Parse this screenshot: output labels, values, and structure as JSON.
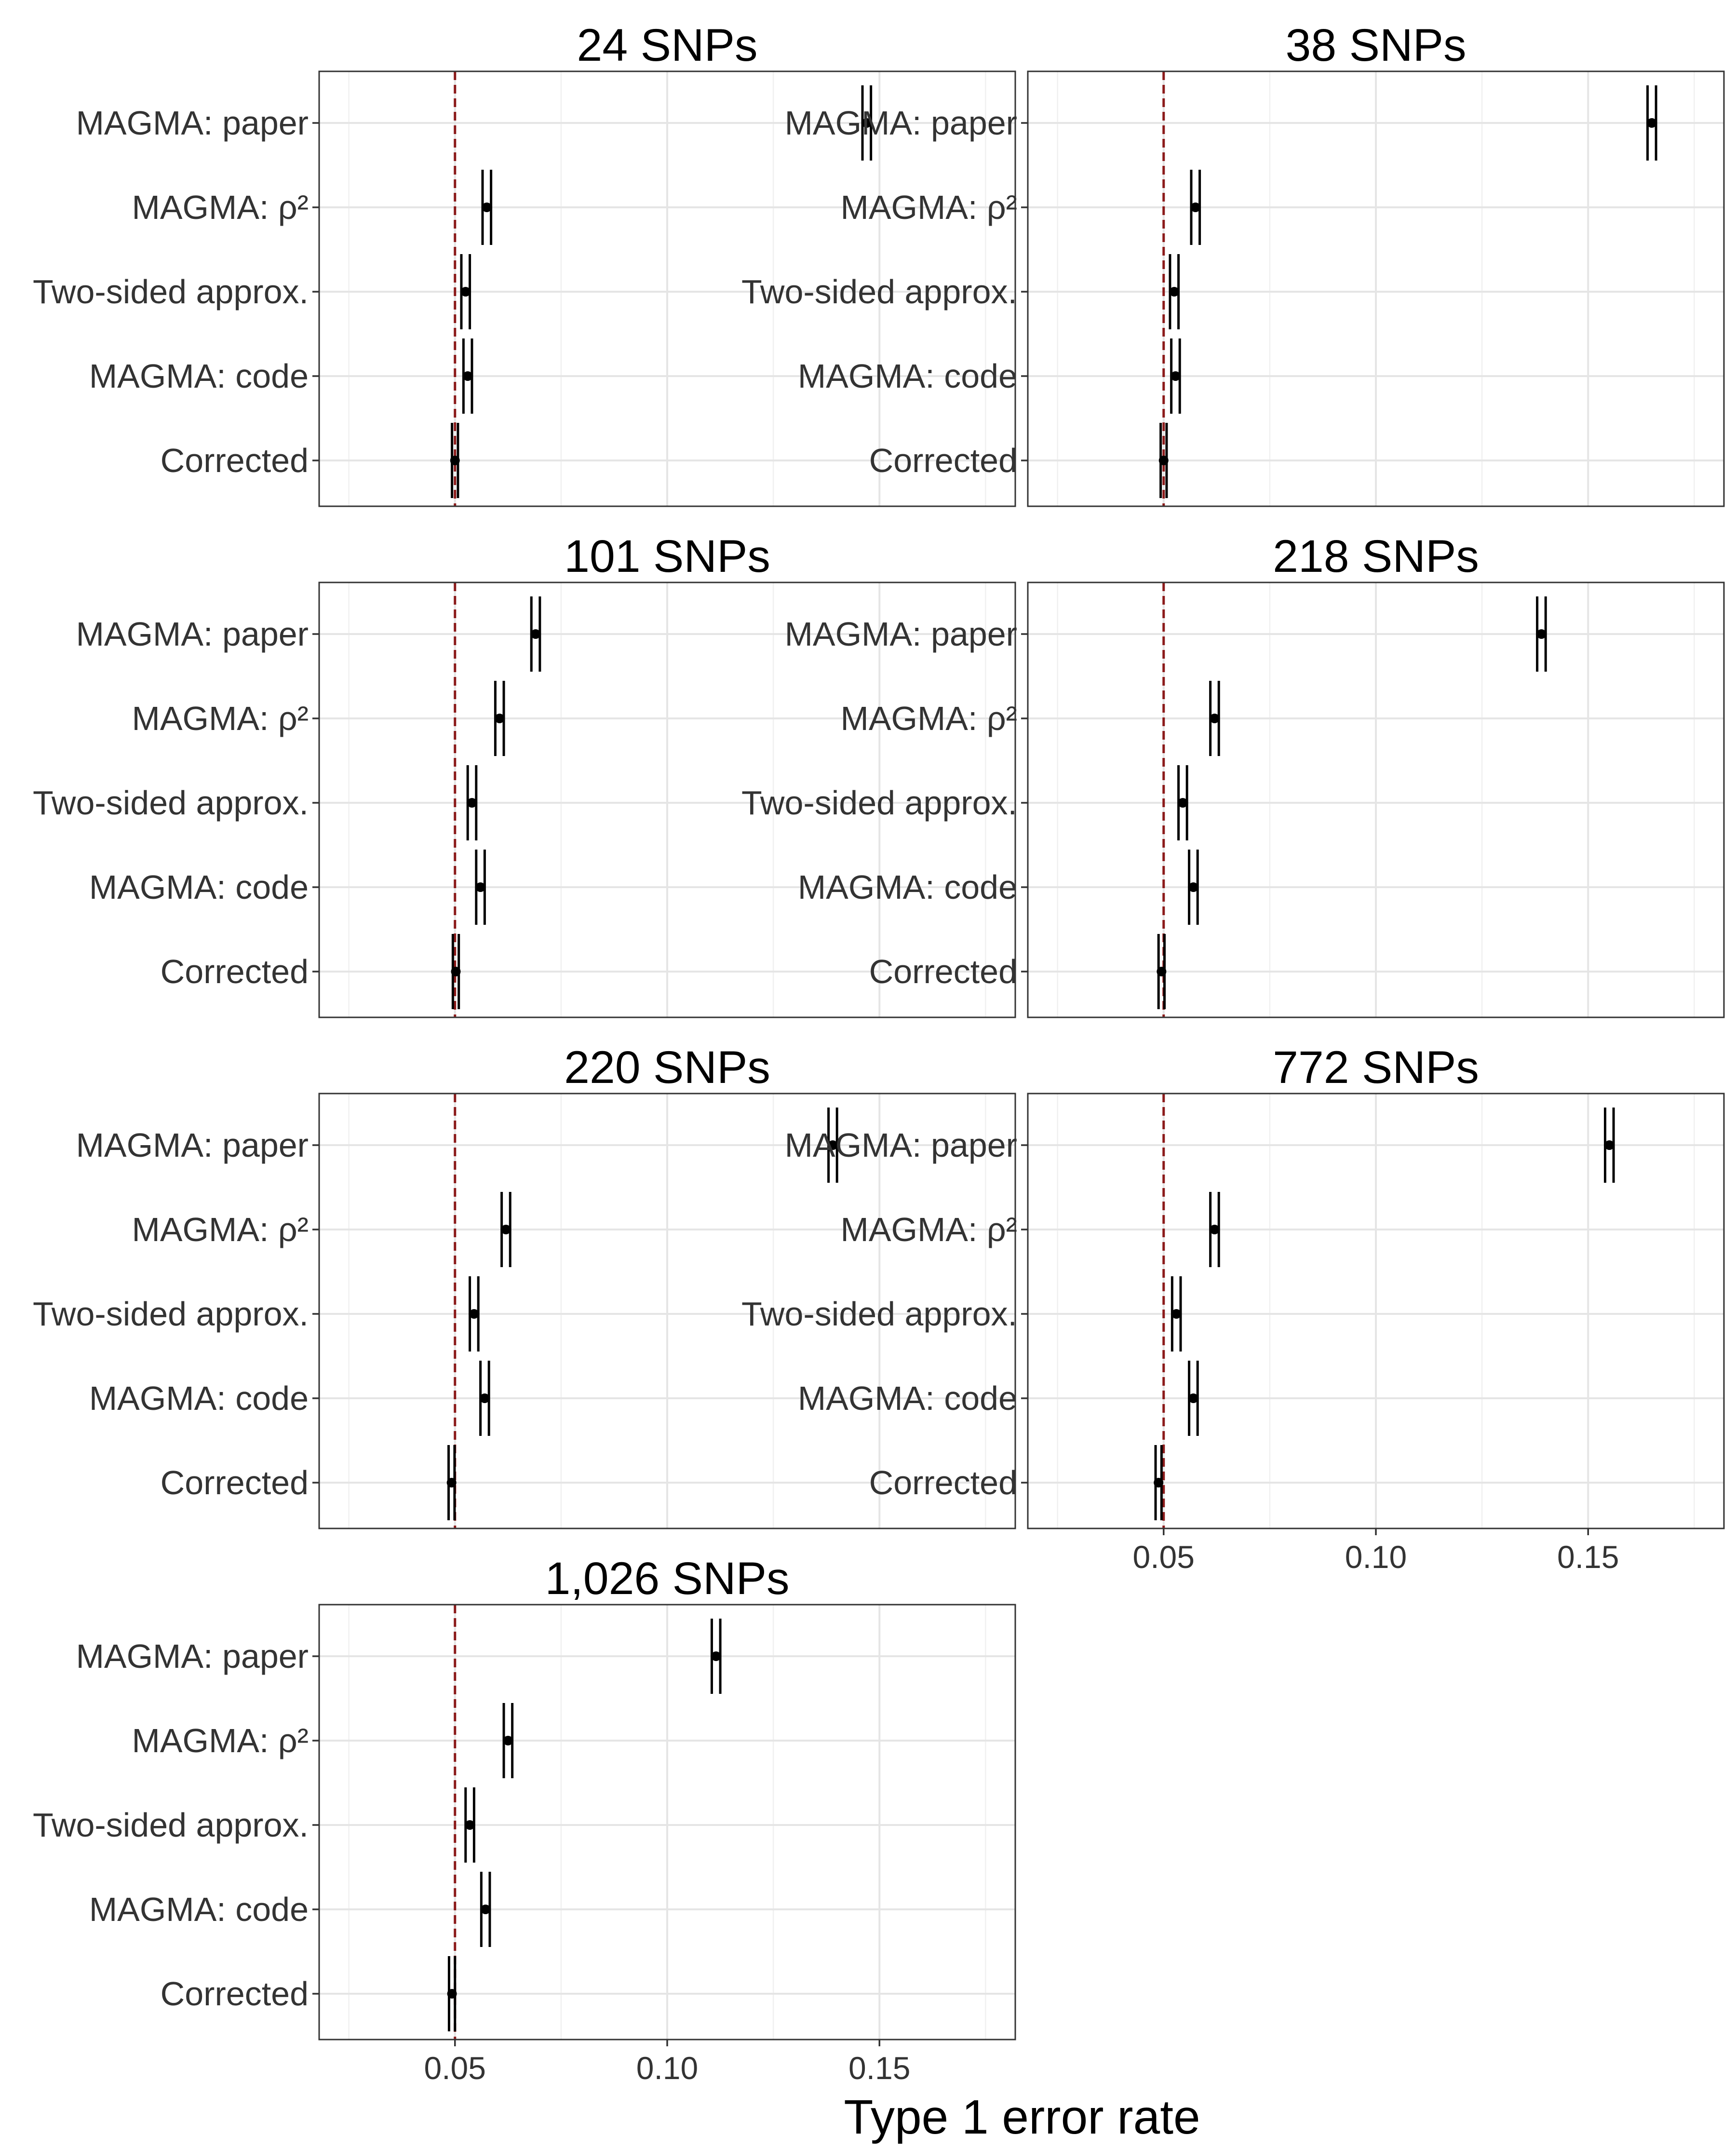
{
  "chart_data": {
    "type": "scatter",
    "subtype": "facetted point-range (dot with confidence interval)",
    "xlabel": "Type 1 error rate",
    "xlim": [
      0.018,
      0.182
    ],
    "x_major_ticks": [
      0.05,
      0.1,
      0.15
    ],
    "x_tick_labels": [
      "0.05",
      "0.10",
      "0.15"
    ],
    "x_minor_ticks": [
      0.025,
      0.075,
      0.125,
      0.175
    ],
    "reference_line": {
      "x": 0.05,
      "style": "dashed",
      "color": "#8b1a1a"
    },
    "categories": [
      "MAGMA: paper",
      "MAGMA: ρ²",
      "Two-sided approx.",
      "MAGMA: code",
      "Corrected"
    ],
    "grid": true,
    "panels": [
      {
        "title": "24 SNPs",
        "points": [
          {
            "category": "MAGMA: paper",
            "value": 0.147,
            "lo": 0.146,
            "hi": 0.148
          },
          {
            "category": "MAGMA: ρ²",
            "value": 0.0575,
            "lo": 0.0565,
            "hi": 0.0585
          },
          {
            "category": "Two-sided approx.",
            "value": 0.0525,
            "lo": 0.0515,
            "hi": 0.0535
          },
          {
            "category": "MAGMA: code",
            "value": 0.053,
            "lo": 0.052,
            "hi": 0.054
          },
          {
            "category": "Corrected",
            "value": 0.05,
            "lo": 0.0493,
            "hi": 0.0507
          }
        ]
      },
      {
        "title": "38 SNPs",
        "points": [
          {
            "category": "MAGMA: paper",
            "value": 0.165,
            "lo": 0.164,
            "hi": 0.166
          },
          {
            "category": "MAGMA: ρ²",
            "value": 0.0575,
            "lo": 0.0565,
            "hi": 0.0585
          },
          {
            "category": "Two-sided approx.",
            "value": 0.0525,
            "lo": 0.0515,
            "hi": 0.0535
          },
          {
            "category": "MAGMA: code",
            "value": 0.0528,
            "lo": 0.0518,
            "hi": 0.0538
          },
          {
            "category": "Corrected",
            "value": 0.05,
            "lo": 0.0493,
            "hi": 0.0507
          }
        ]
      },
      {
        "title": "101 SNPs",
        "points": [
          {
            "category": "MAGMA: paper",
            "value": 0.069,
            "lo": 0.068,
            "hi": 0.07
          },
          {
            "category": "MAGMA: ρ²",
            "value": 0.0605,
            "lo": 0.0595,
            "hi": 0.0615
          },
          {
            "category": "Two-sided approx.",
            "value": 0.054,
            "lo": 0.053,
            "hi": 0.055
          },
          {
            "category": "MAGMA: code",
            "value": 0.056,
            "lo": 0.055,
            "hi": 0.057
          },
          {
            "category": "Corrected",
            "value": 0.0502,
            "lo": 0.0495,
            "hi": 0.0509
          }
        ]
      },
      {
        "title": "218 SNPs",
        "points": [
          {
            "category": "MAGMA: paper",
            "value": 0.139,
            "lo": 0.138,
            "hi": 0.14
          },
          {
            "category": "MAGMA: ρ²",
            "value": 0.062,
            "lo": 0.061,
            "hi": 0.063
          },
          {
            "category": "Two-sided approx.",
            "value": 0.0545,
            "lo": 0.0535,
            "hi": 0.0555
          },
          {
            "category": "MAGMA: code",
            "value": 0.057,
            "lo": 0.056,
            "hi": 0.058
          },
          {
            "category": "Corrected",
            "value": 0.0495,
            "lo": 0.0488,
            "hi": 0.0502
          }
        ]
      },
      {
        "title": "220 SNPs",
        "points": [
          {
            "category": "MAGMA: paper",
            "value": 0.139,
            "lo": 0.138,
            "hi": 0.14
          },
          {
            "category": "MAGMA: ρ²",
            "value": 0.062,
            "lo": 0.061,
            "hi": 0.063
          },
          {
            "category": "Two-sided approx.",
            "value": 0.0545,
            "lo": 0.0535,
            "hi": 0.0555
          },
          {
            "category": "MAGMA: code",
            "value": 0.057,
            "lo": 0.056,
            "hi": 0.058
          },
          {
            "category": "Corrected",
            "value": 0.0492,
            "lo": 0.0485,
            "hi": 0.0499
          }
        ]
      },
      {
        "title": "772 SNPs",
        "points": [
          {
            "category": "MAGMA: paper",
            "value": 0.155,
            "lo": 0.154,
            "hi": 0.156
          },
          {
            "category": "MAGMA: ρ²",
            "value": 0.062,
            "lo": 0.061,
            "hi": 0.063
          },
          {
            "category": "Two-sided approx.",
            "value": 0.053,
            "lo": 0.052,
            "hi": 0.054
          },
          {
            "category": "MAGMA: code",
            "value": 0.057,
            "lo": 0.056,
            "hi": 0.058
          },
          {
            "category": "Corrected",
            "value": 0.0488,
            "lo": 0.0481,
            "hi": 0.0495
          }
        ]
      },
      {
        "title": "1,026 SNPs",
        "points": [
          {
            "category": "MAGMA: paper",
            "value": 0.1115,
            "lo": 0.1105,
            "hi": 0.1125
          },
          {
            "category": "MAGMA: ρ²",
            "value": 0.0625,
            "lo": 0.0615,
            "hi": 0.0635
          },
          {
            "category": "Two-sided approx.",
            "value": 0.0535,
            "lo": 0.0525,
            "hi": 0.0545
          },
          {
            "category": "MAGMA: code",
            "value": 0.0572,
            "lo": 0.0562,
            "hi": 0.0582
          },
          {
            "category": "Corrected",
            "value": 0.0493,
            "lo": 0.0486,
            "hi": 0.05
          }
        ]
      }
    ]
  }
}
